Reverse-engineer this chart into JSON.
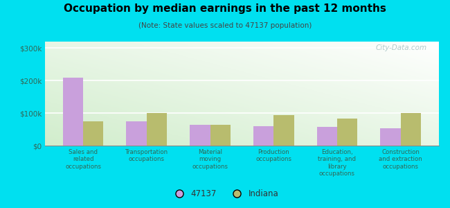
{
  "title": "Occupation by median earnings in the past 12 months",
  "subtitle": "(Note: State values scaled to 47137 population)",
  "categories": [
    "Sales and\nrelated\noccupations",
    "Transportation\noccupations",
    "Material\nmoving\noccupations",
    "Production\noccupations",
    "Education,\ntraining, and\nlibrary\noccupations",
    "Construction\nand extraction\noccupations"
  ],
  "series_47137": [
    210000,
    75000,
    65000,
    60000,
    58000,
    53000
  ],
  "series_indiana": [
    75000,
    100000,
    65000,
    93000,
    83000,
    100000
  ],
  "color_47137": "#c9a0dc",
  "color_indiana": "#b8bc6e",
  "yticks": [
    0,
    100000,
    200000,
    300000
  ],
  "ytick_labels": [
    "$0",
    "$100k",
    "$200k",
    "$300k"
  ],
  "ylim": [
    0,
    320000
  ],
  "legend_47137": "47137",
  "legend_indiana": "Indiana",
  "background_outer": "#00e0f0",
  "watermark": "City-Data.com",
  "bar_width": 0.32
}
